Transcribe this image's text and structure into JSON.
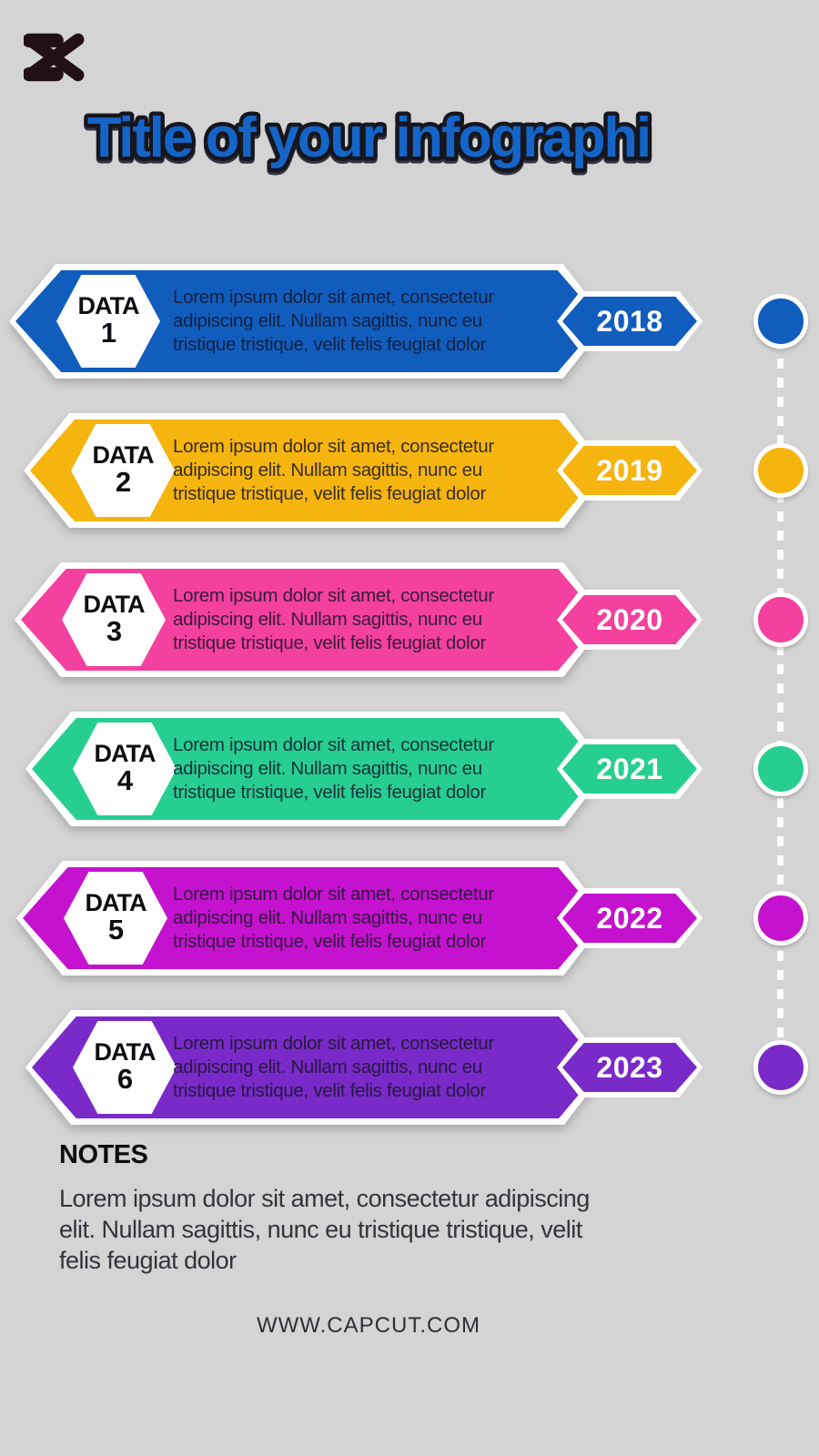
{
  "page": {
    "background_color": "#d4d4d4"
  },
  "logo": {
    "name": "capcut-logo",
    "color": "#221019"
  },
  "title": {
    "text": "Title of your infographi",
    "color": "#1565c8",
    "outline_color": "#16161f"
  },
  "timeline": {
    "items": [
      {
        "label": "DATA",
        "number": "1",
        "year": "2018",
        "color": "#115dbe",
        "description": [
          "Lorem ipsum dolor sit amet, consectetur",
          "adipiscing elit. Nullam sagittis, nunc eu",
          "tristique tristique, velit felis feugiat dolor"
        ]
      },
      {
        "label": "DATA",
        "number": "2",
        "year": "2019",
        "color": "#f6b40f",
        "description": [
          "Lorem ipsum dolor sit amet, consectetur",
          "adipiscing elit. Nullam sagittis, nunc eu",
          "tristique tristique, velit felis feugiat dolor"
        ]
      },
      {
        "label": "DATA",
        "number": "3",
        "year": "2020",
        "color": "#f4409f",
        "description": [
          "Lorem ipsum dolor sit amet, consectetur",
          "adipiscing elit. Nullam sagittis, nunc eu",
          "tristique tristique, velit felis feugiat dolor"
        ]
      },
      {
        "label": "DATA",
        "number": "4",
        "year": "2021",
        "color": "#27ce92",
        "description": [
          "Lorem ipsum dolor sit amet, consectetur",
          "adipiscing elit. Nullam sagittis, nunc eu",
          "tristique tristique, velit felis feugiat dolor"
        ]
      },
      {
        "label": "DATA",
        "number": "5",
        "year": "2022",
        "color": "#c512ce",
        "description": [
          "Lorem ipsum dolor sit amet, consectetur",
          "adipiscing elit. Nullam sagittis, nunc eu",
          "tristique tristique, velit felis feugiat dolor"
        ]
      },
      {
        "label": "DATA",
        "number": "6",
        "year": "2023",
        "color": "#7a2ac8",
        "description": [
          "Lorem ipsum dolor sit amet, consectetur",
          "adipiscing elit. Nullam sagittis, nunc eu",
          "tristique tristique, velit felis feugiat dolor"
        ]
      }
    ]
  },
  "notes": {
    "heading": "NOTES",
    "body": [
      "Lorem ipsum dolor sit amet, consectetur adipiscing",
      "elit. Nullam sagittis, nunc eu tristique tristique, velit",
      "felis feugiat dolor"
    ]
  },
  "footer": {
    "website": "WWW.CAPCUT.COM"
  }
}
